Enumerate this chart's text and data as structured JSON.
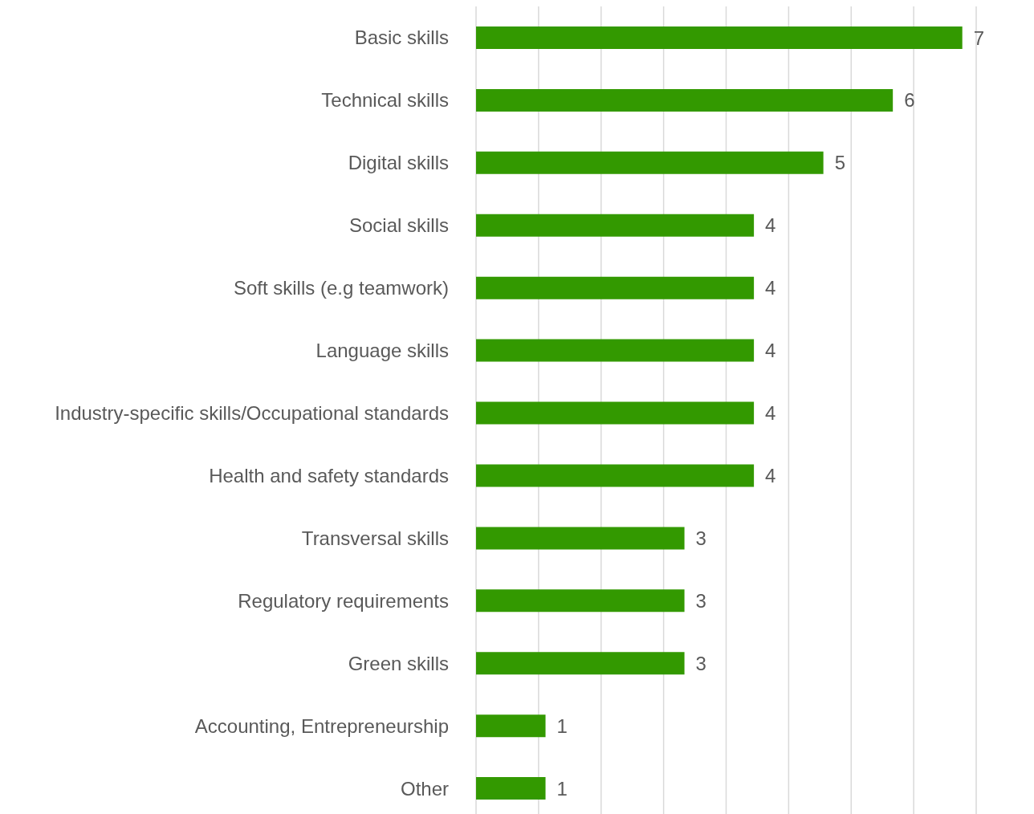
{
  "chart_data": {
    "type": "bar",
    "orientation": "horizontal",
    "categories": [
      "Basic skills",
      "Technical skills",
      "Digital skills",
      "Social skills",
      "Soft skills (e.g teamwork)",
      "Language skills",
      "Industry-specific skills/Occupational standards",
      "Health and safety standards",
      "Transversal skills",
      "Regulatory requirements",
      "Green skills",
      "Accounting, Entrepreneurship",
      "Other"
    ],
    "values": [
      7,
      6,
      5,
      4,
      4,
      4,
      4,
      4,
      3,
      3,
      3,
      1,
      1
    ],
    "color": "#339900",
    "grid": "x",
    "tick_labels": "y",
    "data_labels": true
  }
}
